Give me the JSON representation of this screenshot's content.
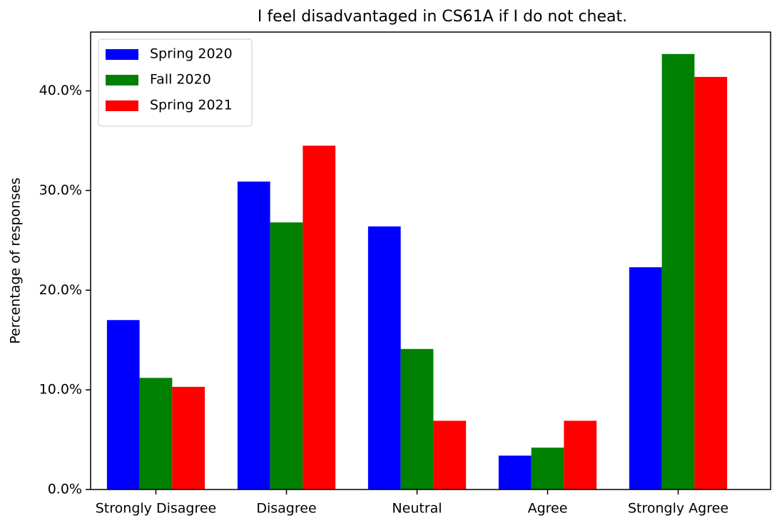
{
  "chart_data": {
    "type": "bar",
    "title": "I feel disadvantaged in CS61A if I do not cheat.",
    "y_label": "Percentage of responses",
    "categories": [
      "Strongly Disagree",
      "Disagree",
      "Neutral",
      "Agree",
      "Strongly Agree"
    ],
    "series": [
      {
        "name": "Spring 2020",
        "color": "#0000ff",
        "values": [
          17.0,
          30.9,
          26.4,
          3.4,
          22.3
        ]
      },
      {
        "name": "Fall 2020",
        "color": "#008000",
        "values": [
          11.2,
          26.8,
          14.1,
          4.2,
          43.7
        ]
      },
      {
        "name": "Spring 2021",
        "color": "#ff0000",
        "values": [
          10.3,
          34.5,
          6.9,
          6.9,
          41.4
        ]
      }
    ],
    "ylim": [
      0,
      45.9
    ],
    "yticks": [
      {
        "value": 0,
        "label": "0.0%"
      },
      {
        "value": 10,
        "label": "10.0%"
      },
      {
        "value": 20,
        "label": "20.0%"
      },
      {
        "value": 30,
        "label": "30.0%"
      },
      {
        "value": 40,
        "label": "40.0%"
      }
    ],
    "legend": "upper left"
  }
}
